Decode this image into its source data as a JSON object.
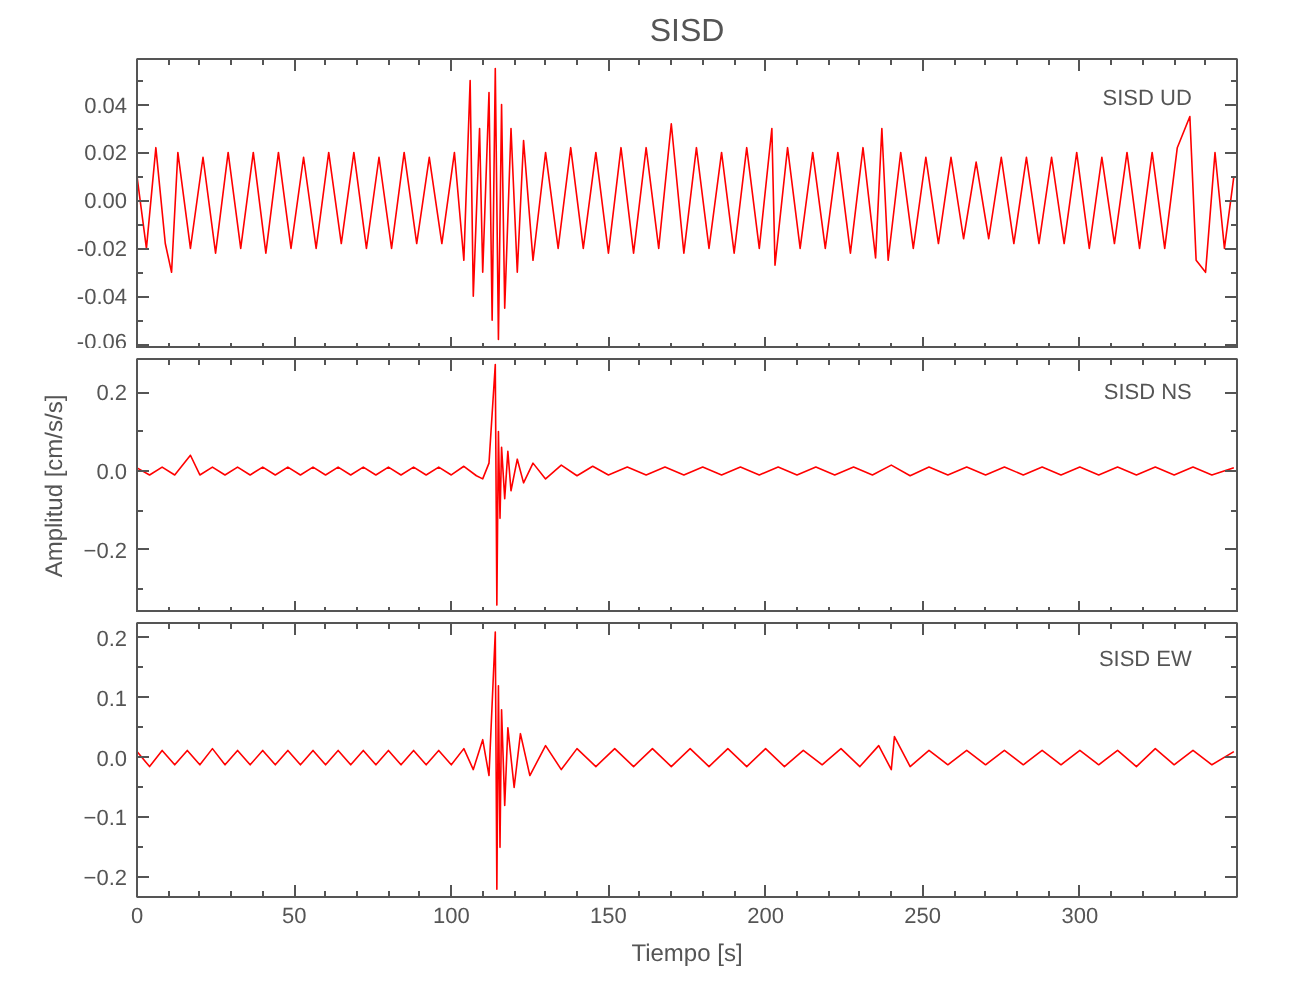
{
  "chart_data": [
    {
      "type": "line",
      "title": "SISD",
      "annotations": [
        "SISD   UD"
      ],
      "xlim": [
        0,
        350
      ],
      "xticks": [
        0,
        50,
        100,
        150,
        200,
        250,
        300
      ],
      "ylim": [
        -0.062,
        0.059
      ],
      "yticks": [
        {
          "value": -0.06,
          "label": "-0.06"
        },
        {
          "value": -0.04,
          "label": "-0.04"
        },
        {
          "value": -0.02,
          "label": "-0.02"
        },
        {
          "value": 0.0,
          "label": "0.00"
        },
        {
          "value": 0.02,
          "label": "0.02"
        },
        {
          "value": 0.04,
          "label": "0.04"
        }
      ],
      "tick_labels": "y",
      "x": [
        0,
        3,
        6,
        9,
        11,
        13,
        17,
        21,
        25,
        29,
        33,
        37,
        41,
        45,
        49,
        53,
        57,
        61,
        65,
        69,
        73,
        77,
        81,
        85,
        89,
        93,
        97,
        101,
        104,
        106,
        107,
        109,
        110,
        112,
        113,
        114,
        115,
        116,
        117,
        119,
        121,
        123,
        126,
        130,
        134,
        138,
        142,
        146,
        150,
        154,
        158,
        162,
        166,
        170,
        174,
        178,
        182,
        186,
        190,
        194,
        198,
        202,
        203,
        207,
        211,
        215,
        219,
        223,
        227,
        231,
        235,
        237,
        239,
        243,
        247,
        251,
        255,
        259,
        263,
        267,
        271,
        275,
        279,
        283,
        287,
        291,
        295,
        299,
        303,
        307,
        311,
        315,
        319,
        323,
        327,
        331,
        335,
        337,
        340,
        343,
        346,
        349
      ],
      "series": [
        {
          "color": "#ff0000",
          "values": [
            0.01,
            -0.02,
            0.022,
            -0.018,
            -0.03,
            0.02,
            -0.02,
            0.018,
            -0.022,
            0.02,
            -0.02,
            0.02,
            -0.022,
            0.02,
            -0.02,
            0.018,
            -0.02,
            0.02,
            -0.018,
            0.02,
            -0.02,
            0.018,
            -0.02,
            0.02,
            -0.018,
            0.018,
            -0.018,
            0.02,
            -0.025,
            0.05,
            -0.04,
            0.03,
            -0.03,
            0.045,
            -0.05,
            0.055,
            -0.058,
            0.04,
            -0.045,
            0.03,
            -0.03,
            0.025,
            -0.025,
            0.02,
            -0.02,
            0.022,
            -0.02,
            0.02,
            -0.022,
            0.022,
            -0.022,
            0.022,
            -0.02,
            0.032,
            -0.022,
            0.022,
            -0.02,
            0.02,
            -0.022,
            0.022,
            -0.02,
            0.03,
            -0.027,
            0.022,
            -0.02,
            0.02,
            -0.02,
            0.02,
            -0.022,
            0.022,
            -0.024,
            0.03,
            -0.025,
            0.02,
            -0.02,
            0.018,
            -0.018,
            0.018,
            -0.016,
            0.016,
            -0.016,
            0.018,
            -0.018,
            0.018,
            -0.018,
            0.018,
            -0.018,
            0.02,
            -0.02,
            0.018,
            -0.018,
            0.02,
            -0.02,
            0.02,
            -0.02,
            0.022,
            0.035,
            -0.025,
            -0.03,
            0.02,
            -0.02,
            0.01
          ]
        }
      ]
    },
    {
      "type": "line",
      "ylabel": "Amplitud [cm/s/s]",
      "annotations": [
        "SISD   NS"
      ],
      "xlim": [
        0,
        350
      ],
      "xticks": [
        0,
        50,
        100,
        150,
        200,
        250,
        300
      ],
      "ylim": [
        -0.36,
        0.284
      ],
      "yticks": [
        -0.2,
        {
          "value": 0.0,
          "label": "0.0"
        },
        0.2
      ],
      "tick_labels": "y",
      "x": [
        0,
        4,
        8,
        12,
        17,
        20,
        24,
        28,
        32,
        36,
        40,
        44,
        48,
        52,
        56,
        60,
        64,
        68,
        72,
        76,
        80,
        84,
        88,
        92,
        96,
        100,
        104,
        108,
        110,
        112,
        114,
        114.5,
        115,
        115.5,
        116,
        117,
        118,
        119,
        121,
        123,
        126,
        130,
        135,
        140,
        145,
        150,
        156,
        162,
        168,
        174,
        180,
        186,
        192,
        198,
        204,
        210,
        216,
        222,
        228,
        234,
        240,
        246,
        252,
        258,
        264,
        270,
        276,
        282,
        288,
        294,
        300,
        306,
        312,
        318,
        324,
        330,
        336,
        342,
        349
      ],
      "series": [
        {
          "color": "#ff0000",
          "values": [
            0.008,
            -0.01,
            0.01,
            -0.01,
            0.04,
            -0.01,
            0.01,
            -0.01,
            0.01,
            -0.01,
            0.01,
            -0.01,
            0.01,
            -0.01,
            0.01,
            -0.01,
            0.01,
            -0.01,
            0.01,
            -0.01,
            0.01,
            -0.01,
            0.01,
            -0.01,
            0.01,
            -0.01,
            0.012,
            -0.012,
            -0.02,
            0.02,
            0.27,
            -0.34,
            0.1,
            -0.12,
            0.06,
            -0.07,
            0.05,
            -0.05,
            0.03,
            -0.03,
            0.02,
            -0.02,
            0.015,
            -0.012,
            0.012,
            -0.01,
            0.01,
            -0.01,
            0.01,
            -0.01,
            0.01,
            -0.01,
            0.01,
            -0.01,
            0.01,
            -0.01,
            0.01,
            -0.01,
            0.01,
            -0.01,
            0.015,
            -0.012,
            0.01,
            -0.01,
            0.01,
            -0.01,
            0.01,
            -0.01,
            0.01,
            -0.01,
            0.01,
            -0.01,
            0.01,
            -0.01,
            0.01,
            -0.01,
            0.01,
            -0.01,
            0.008
          ]
        }
      ]
    },
    {
      "type": "line",
      "xlabel": "Tiempo [s]",
      "annotations": [
        "SISD   EW"
      ],
      "xlim": [
        0,
        350
      ],
      "xticks": [
        0,
        50,
        100,
        150,
        200,
        250,
        300
      ],
      "ylim": [
        -0.233,
        0.225
      ],
      "yticks": [
        -0.2,
        -0.1,
        {
          "value": 0.0,
          "label": "0.0"
        },
        0.1,
        0.2
      ],
      "x": [
        0,
        4,
        8,
        12,
        16,
        20,
        24,
        28,
        32,
        36,
        40,
        44,
        48,
        52,
        56,
        60,
        64,
        68,
        72,
        76,
        80,
        84,
        88,
        92,
        96,
        100,
        104,
        107,
        110,
        112,
        114,
        114.5,
        115,
        115.5,
        116,
        117,
        118,
        120,
        122,
        125,
        130,
        135,
        140,
        146,
        152,
        158,
        164,
        170,
        176,
        182,
        188,
        194,
        200,
        206,
        212,
        218,
        224,
        230,
        236,
        240,
        241,
        246,
        252,
        258,
        264,
        270,
        276,
        282,
        288,
        294,
        300,
        306,
        312,
        318,
        324,
        330,
        336,
        342,
        349
      ],
      "series": [
        {
          "color": "#ff0000",
          "values": [
            0.01,
            -0.015,
            0.012,
            -0.012,
            0.012,
            -0.012,
            0.015,
            -0.012,
            0.012,
            -0.012,
            0.012,
            -0.012,
            0.012,
            -0.012,
            0.012,
            -0.012,
            0.012,
            -0.012,
            0.012,
            -0.012,
            0.012,
            -0.012,
            0.012,
            -0.012,
            0.012,
            -0.012,
            0.015,
            -0.02,
            0.03,
            -0.03,
            0.21,
            -0.22,
            0.12,
            -0.15,
            0.08,
            -0.08,
            0.05,
            -0.05,
            0.04,
            -0.03,
            0.02,
            -0.02,
            0.015,
            -0.015,
            0.015,
            -0.015,
            0.015,
            -0.015,
            0.015,
            -0.015,
            0.015,
            -0.015,
            0.015,
            -0.015,
            0.012,
            -0.012,
            0.015,
            -0.015,
            0.02,
            -0.02,
            0.035,
            -0.015,
            0.012,
            -0.012,
            0.012,
            -0.012,
            0.012,
            -0.012,
            0.012,
            -0.012,
            0.012,
            -0.012,
            0.012,
            -0.015,
            0.015,
            -0.012,
            0.012,
            -0.012,
            0.01
          ]
        }
      ]
    }
  ]
}
